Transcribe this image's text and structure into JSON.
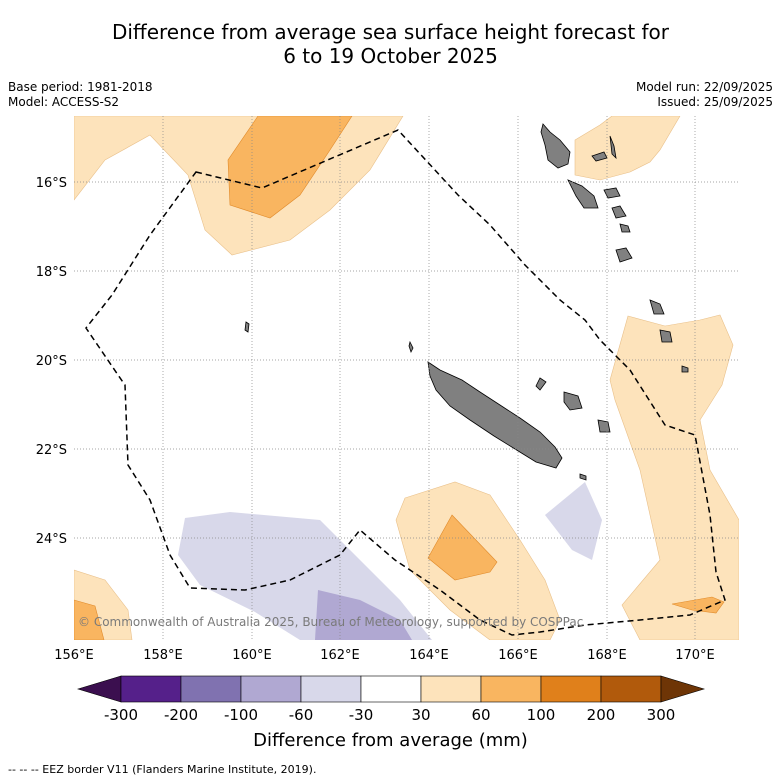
{
  "header": {
    "title_line1": "Difference from average sea surface height forecast for",
    "title_line2": "6 to 19 October 2025"
  },
  "meta": {
    "base_period": "Base period: 1981-2018",
    "model": "Model: ACCESS-S2",
    "model_run": "Model run: 22/09/2025",
    "issued": "Issued: 25/09/2025"
  },
  "map": {
    "lon_labels": [
      "156°E",
      "158°E",
      "160°E",
      "162°E",
      "164°E",
      "166°E",
      "168°E",
      "170°E"
    ],
    "lat_labels": [
      "16°S",
      "18°S",
      "20°S",
      "22°S",
      "24°S"
    ],
    "copyright": "© Commonwealth of Australia 2025, Bureau of Meteorology, supported by COSPPac"
  },
  "colorbar": {
    "title": "Difference from average (mm)",
    "ticks": [
      "-300",
      "-200",
      "-100",
      "-60",
      "-30",
      "30",
      "60",
      "100",
      "200",
      "300"
    ],
    "colors": [
      "#3b0f4f",
      "#55208a",
      "#8072b0",
      "#b0a8d2",
      "#d8d8ea",
      "#ffffff",
      "#fde3bb",
      "#f9b560",
      "#e0801b",
      "#b15a0c",
      "#6e3506"
    ]
  },
  "legend": {
    "eez_label": "-- -- -- EEZ border V11 (Flanders Marine Institute, 2019)."
  }
}
